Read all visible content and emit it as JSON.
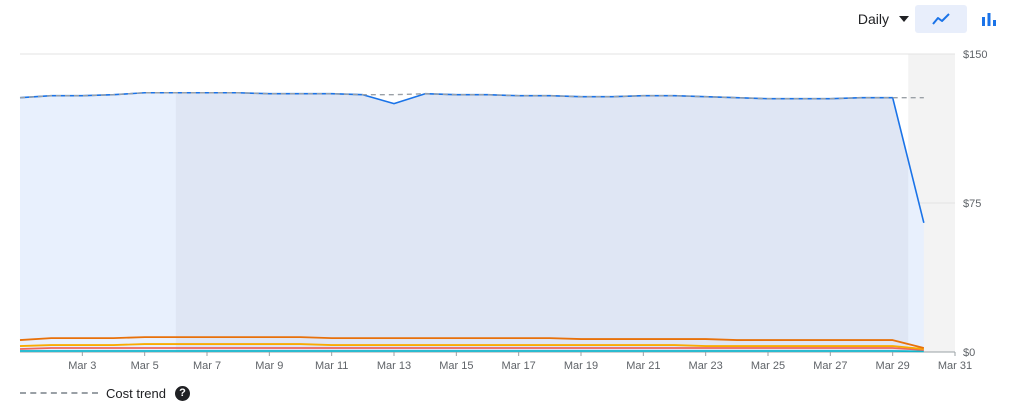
{
  "toolbar": {
    "granularity": "Daily",
    "line_view_icon": "line-chart-icon",
    "bar_view_icon": "bar-chart-icon",
    "accent_color": "#1a73e8"
  },
  "legend": {
    "cost_trend_label": "Cost trend",
    "help_icon": "help-icon",
    "help_glyph": "?"
  },
  "chart_data": {
    "type": "area",
    "grid": true,
    "legend_position": "bottom-left",
    "y_ticks": [
      "$0",
      "$75",
      "$150"
    ],
    "ylim": [
      0,
      150
    ],
    "x_ticks": [
      "Mar 3",
      "Mar 5",
      "Mar 7",
      "Mar 9",
      "Mar 11",
      "Mar 13",
      "Mar 15",
      "Mar 17",
      "Mar 19",
      "Mar 21",
      "Mar 23",
      "Mar 25",
      "Mar 27",
      "Mar 29",
      "Mar 31"
    ],
    "xlim": [
      1,
      31
    ],
    "x": [
      1,
      2,
      3,
      4,
      5,
      6,
      7,
      8,
      9,
      10,
      11,
      12,
      13,
      14,
      15,
      16,
      17,
      18,
      19,
      20,
      21,
      22,
      23,
      24,
      25,
      26,
      27,
      28,
      29,
      30
    ],
    "series": [
      {
        "color": "#1a73e8",
        "fill": "#dfe6f4",
        "values": [
          128,
          129,
          129,
          129.5,
          130.5,
          130.5,
          130.5,
          130.5,
          130,
          130,
          130,
          129.5,
          125,
          130,
          129.5,
          129.5,
          129,
          129,
          128.5,
          128.5,
          129,
          129,
          128.5,
          128,
          127.5,
          127.5,
          127.5,
          128,
          128,
          65
        ]
      },
      {
        "color": "#e8710a",
        "values": [
          6,
          7,
          7,
          7,
          7.5,
          7.5,
          7.5,
          7.5,
          7.5,
          7.5,
          7,
          7,
          7,
          7,
          7,
          7,
          7,
          7,
          6.5,
          6.5,
          6.5,
          6.5,
          6.5,
          6,
          6,
          6,
          6,
          6,
          6,
          2
        ]
      },
      {
        "color": "#f9ab00",
        "values": [
          3,
          3.5,
          3.5,
          3.5,
          4,
          4,
          4,
          4,
          4,
          4,
          3.5,
          3.5,
          3.5,
          3.5,
          3.5,
          3.5,
          3.5,
          3.5,
          3.5,
          3.5,
          3.5,
          3.5,
          3,
          3,
          3,
          3,
          3,
          3,
          3,
          1.5
        ]
      },
      {
        "color": "#ee675c",
        "values": [
          1.5,
          2,
          2,
          2,
          2,
          2,
          2,
          2,
          2,
          2,
          2,
          2,
          2,
          2,
          2,
          2,
          2,
          2,
          2,
          2,
          2,
          2,
          2,
          2,
          2,
          2,
          2,
          2,
          2,
          1
        ]
      },
      {
        "color": "#12b5cb",
        "values": [
          0.5,
          0.5,
          0.5,
          0.5,
          0.5,
          0.5,
          0.5,
          0.5,
          0.5,
          0.5,
          0.5,
          0.5,
          0.5,
          0.5,
          0.5,
          0.5,
          0.5,
          0.5,
          0.5,
          0.5,
          0.5,
          0.5,
          0.5,
          0.5,
          0.5,
          0.5,
          0.5,
          0.5,
          0.5,
          0.3
        ]
      }
    ],
    "cost_trend": {
      "color": "#9aa0a6",
      "x": [
        1,
        2,
        3,
        4,
        5,
        6,
        7,
        8,
        9,
        10,
        11,
        12,
        13,
        14,
        15,
        16,
        17,
        18,
        19,
        20,
        21,
        22,
        23,
        24,
        25,
        26,
        27,
        28,
        29,
        30
      ],
      "values": [
        128,
        129,
        129,
        129.5,
        130.5,
        130.5,
        130.5,
        130.5,
        130,
        130,
        130,
        129.5,
        129.5,
        130,
        129.5,
        129.5,
        129,
        129,
        128.5,
        128.5,
        129,
        129,
        128.5,
        128,
        127.5,
        127.5,
        127.5,
        128,
        128,
        128
      ]
    },
    "highlight_range": [
      6,
      29.5
    ],
    "forecast_range": [
      29.5,
      31
    ]
  }
}
